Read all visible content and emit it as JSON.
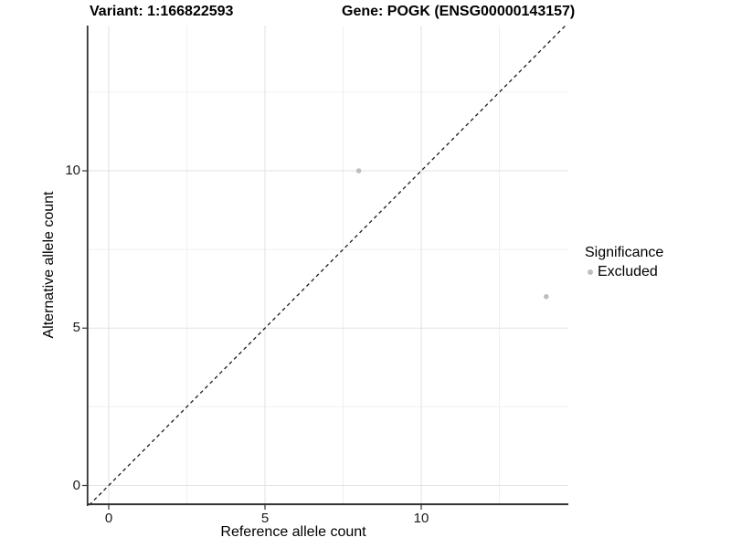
{
  "figure": {
    "title_left": "Variant: 1:166822593",
    "title_right": "Gene: POGK (ENSG00000143157)"
  },
  "chart_data": {
    "type": "scatter",
    "title_left": "Variant: 1:166822593",
    "title_right": "Gene: POGK (ENSG00000143157)",
    "xlabel": "Reference allele count",
    "ylabel": "Alternative allele count",
    "x_major_ticks": [
      0,
      5,
      10
    ],
    "y_major_ticks": [
      0,
      5,
      10
    ],
    "minor_tick_step": 2.5,
    "xlim": [
      -0.7,
      14.7
    ],
    "ylim": [
      -0.62,
      14.61
    ],
    "grid": "major+minor",
    "identity_line": {
      "style": "dashed",
      "slope": 1,
      "intercept": 0,
      "color": "#1a1a1a"
    },
    "series": [
      {
        "name": "Excluded",
        "color": "#bebebe",
        "points": [
          {
            "x": 8,
            "y": 10
          },
          {
            "x": 14,
            "y": 6
          }
        ]
      }
    ],
    "legend": {
      "title": "Significance",
      "position": "right",
      "items": [
        {
          "label": "Excluded",
          "color": "#bebebe"
        }
      ]
    },
    "colors": {
      "grid_major": "#e2e2e2",
      "grid_minor": "#f0f0f0",
      "axis_line": "#333333",
      "tick_text": "#1a1a1a"
    }
  }
}
